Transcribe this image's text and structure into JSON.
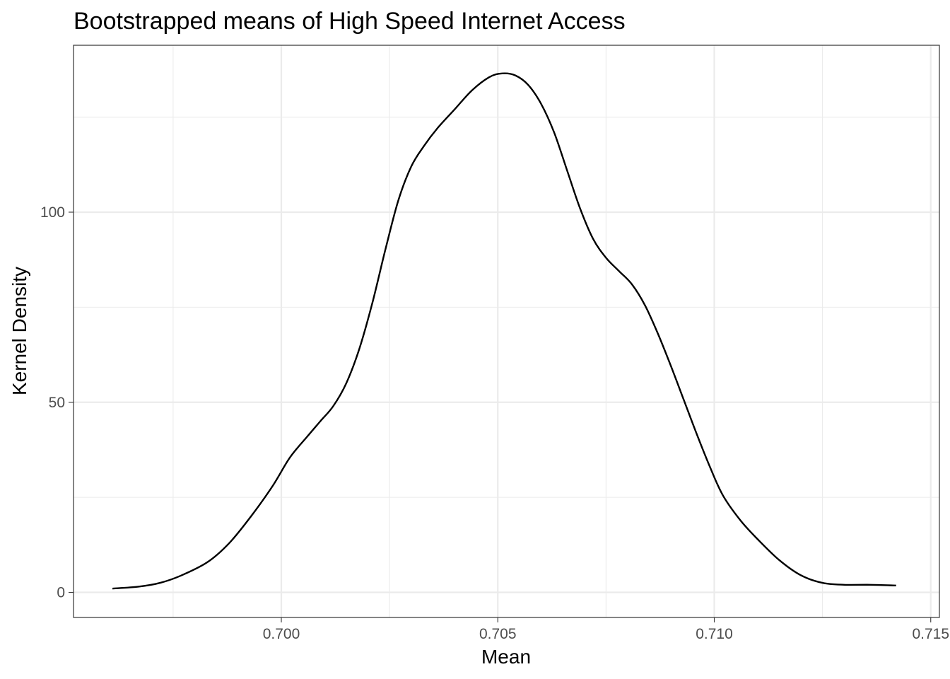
{
  "chart_data": {
    "type": "line",
    "title": "Bootstrapped means of High Speed Internet Access",
    "xlabel": "Mean",
    "ylabel": "Kernel Density",
    "xlim": [
      0.6952,
      0.7152
    ],
    "ylim": [
      -6.6,
      143.9
    ],
    "x_ticks": [
      {
        "value": 0.7,
        "label": "0.700"
      },
      {
        "value": 0.705,
        "label": "0.705"
      },
      {
        "value": 0.71,
        "label": "0.710"
      },
      {
        "value": 0.715,
        "label": "0.715"
      }
    ],
    "y_ticks": [
      {
        "value": 0,
        "label": "0"
      },
      {
        "value": 50,
        "label": "50"
      },
      {
        "value": 100,
        "label": "100"
      }
    ],
    "x_minor_ticks": [
      0.6975,
      0.7025,
      0.7075,
      0.7125
    ],
    "y_minor_ticks": [
      25,
      75,
      125
    ],
    "grid": true,
    "series": [
      {
        "color": "#000000",
        "x": [
          0.6961,
          0.6967,
          0.6972,
          0.6977,
          0.6983,
          0.6988,
          0.6993,
          0.6998,
          0.7002,
          0.7006,
          0.7009,
          0.7012,
          0.7015,
          0.7018,
          0.7021,
          0.7024,
          0.7027,
          0.703,
          0.7033,
          0.7036,
          0.704,
          0.7044,
          0.7048,
          0.7051,
          0.7054,
          0.7057,
          0.706,
          0.7063,
          0.7066,
          0.7069,
          0.7072,
          0.7075,
          0.7078,
          0.7081,
          0.7084,
          0.7087,
          0.709,
          0.7093,
          0.7096,
          0.7099,
          0.7102,
          0.7106,
          0.711,
          0.7115,
          0.712,
          0.7125,
          0.713,
          0.7136,
          0.7142
        ],
        "y": [
          1.0,
          1.5,
          2.5,
          4.5,
          8.0,
          13.0,
          20.0,
          28.0,
          35.5,
          41.0,
          45.0,
          49.0,
          55.0,
          64.0,
          76.0,
          90.0,
          103.0,
          112.0,
          117.5,
          122.0,
          127.0,
          132.0,
          135.5,
          136.5,
          136.0,
          133.5,
          128.5,
          121.0,
          111.0,
          101.0,
          93.0,
          88.0,
          84.5,
          81.0,
          75.5,
          68.0,
          59.5,
          50.5,
          41.5,
          33.0,
          25.5,
          19.0,
          14.0,
          8.5,
          4.5,
          2.5,
          2.0,
          2.0,
          1.8
        ]
      }
    ]
  }
}
